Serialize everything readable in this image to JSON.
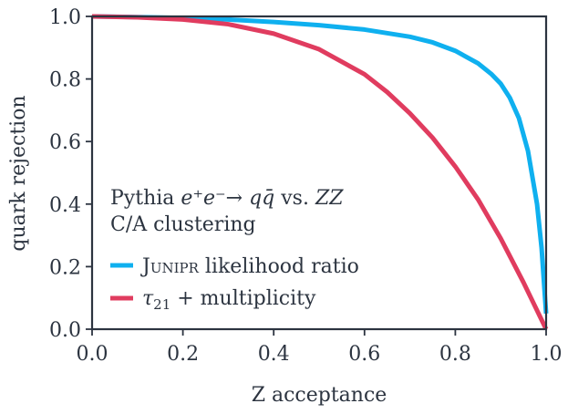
{
  "chart_data": {
    "type": "line",
    "xlabel": "Z acceptance",
    "ylabel": "quark rejection",
    "xlim": [
      0.0,
      1.0
    ],
    "ylim": [
      0.0,
      1.0
    ],
    "x_ticks": [
      "0.0",
      "0.2",
      "0.4",
      "0.6",
      "0.8",
      "1.0"
    ],
    "y_ticks": [
      "0.0",
      "0.2",
      "0.4",
      "0.6",
      "0.8",
      "1.0"
    ],
    "legend_title_line1": {
      "prefix": "Pythia ",
      "process": "e⁺e⁻→ qq̄",
      "middle": " vs. ",
      "suffix": "ZZ"
    },
    "legend_title_line2": "C/A clustering",
    "legend_position": "lower-left",
    "grid": false,
    "series": [
      {
        "name": "Junipr likelihood ratio",
        "name_smallcaps": "Junipr",
        "name_rest": " likelihood ratio",
        "color": "#0fb0ef",
        "x": [
          0.0,
          0.1,
          0.2,
          0.3,
          0.4,
          0.5,
          0.6,
          0.7,
          0.75,
          0.8,
          0.85,
          0.88,
          0.9,
          0.92,
          0.94,
          0.96,
          0.98,
          0.99,
          1.0
        ],
        "y": [
          1.0,
          0.998,
          0.995,
          0.99,
          0.982,
          0.972,
          0.958,
          0.935,
          0.917,
          0.89,
          0.85,
          0.815,
          0.785,
          0.74,
          0.675,
          0.57,
          0.4,
          0.26,
          0.05
        ]
      },
      {
        "name": "τ21 + multiplicity",
        "name_tau": "τ",
        "name_sub": "21",
        "name_rest": " + multiplicity",
        "color": "#e03c5f",
        "x": [
          0.0,
          0.1,
          0.2,
          0.3,
          0.4,
          0.5,
          0.6,
          0.65,
          0.7,
          0.75,
          0.8,
          0.85,
          0.9,
          0.95,
          0.98,
          1.0
        ],
        "y": [
          1.0,
          0.997,
          0.99,
          0.975,
          0.945,
          0.895,
          0.815,
          0.758,
          0.69,
          0.612,
          0.52,
          0.415,
          0.29,
          0.15,
          0.06,
          0.0
        ]
      }
    ]
  }
}
